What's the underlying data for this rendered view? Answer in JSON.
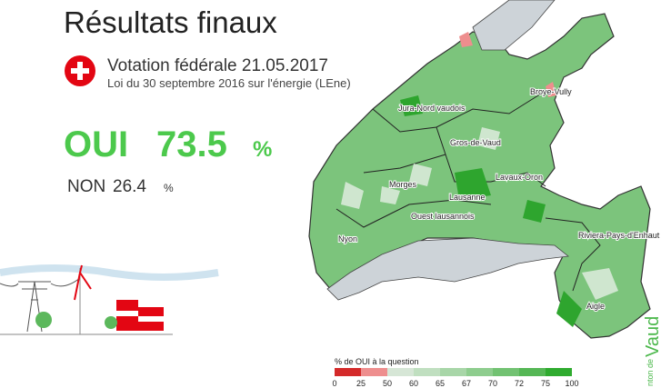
{
  "header": {
    "title": "Résultats finaux",
    "subtitle": "Votation fédérale 21.05.2017",
    "question": "Loi du 30 septembre 2016 sur l'énergie (LEne)"
  },
  "results": {
    "yes": {
      "label": "OUI",
      "value": 73.5,
      "unit": "%"
    },
    "no": {
      "label": "NON",
      "value": 26.4,
      "unit": "%"
    }
  },
  "map": {
    "districts": [
      "Jura-Nord vaudois",
      "Broye-Vully",
      "Gros-de-Vaud",
      "Lavaux-Oron",
      "Morges",
      "Lausanne",
      "Ouest lausannois",
      "Nyon",
      "Riviera-Pays-d'Enhaut",
      "Aigle"
    ]
  },
  "legend": {
    "title": "% de OUI à la question",
    "ticks": [
      0,
      25,
      50,
      60,
      65,
      67,
      70,
      72,
      75,
      100
    ],
    "colors": [
      "#d42a2a",
      "#ee8e8e",
      "#d6e6d6",
      "#c0dfc0",
      "#a8d6a8",
      "#8ecd8e",
      "#72c272",
      "#55b755",
      "#2fab2f"
    ]
  },
  "brand": {
    "prefix": "nton de",
    "name": "Vaud"
  }
}
